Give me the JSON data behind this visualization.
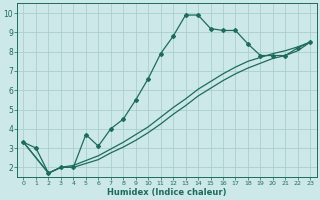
{
  "title": "",
  "xlabel": "Humidex (Indice chaleur)",
  "bg_color": "#cce8e8",
  "grid_color": "#aacece",
  "line_color": "#1e6b5e",
  "xlim": [
    -0.5,
    23.5
  ],
  "ylim": [
    1.5,
    10.5
  ],
  "xticks": [
    0,
    1,
    2,
    3,
    4,
    5,
    6,
    7,
    8,
    9,
    10,
    11,
    12,
    13,
    14,
    15,
    16,
    17,
    18,
    19,
    20,
    21,
    22,
    23
  ],
  "yticks": [
    2,
    3,
    4,
    5,
    6,
    7,
    8,
    9,
    10
  ],
  "series1_x": [
    0,
    1,
    2,
    3,
    4,
    5,
    6,
    7,
    8,
    9,
    10,
    11,
    12,
    13,
    14,
    15,
    16,
    17,
    18,
    19,
    20,
    21,
    22,
    23
  ],
  "series1_y": [
    3.3,
    3.0,
    1.7,
    2.0,
    2.0,
    3.7,
    3.1,
    4.0,
    4.5,
    5.5,
    6.6,
    7.9,
    8.8,
    9.9,
    9.9,
    9.2,
    9.1,
    9.1,
    8.4,
    7.8,
    7.8,
    7.8,
    8.2,
    8.5
  ],
  "series2_x": [
    0,
    2,
    3,
    4,
    5,
    6,
    7,
    8,
    9,
    10,
    11,
    12,
    13,
    14,
    15,
    16,
    17,
    18,
    19,
    20,
    21,
    22,
    23
  ],
  "series2_y": [
    3.3,
    1.7,
    2.0,
    2.1,
    2.35,
    2.6,
    2.95,
    3.3,
    3.7,
    4.1,
    4.6,
    5.1,
    5.55,
    6.05,
    6.45,
    6.85,
    7.2,
    7.5,
    7.7,
    7.9,
    8.05,
    8.25,
    8.5
  ],
  "series3_x": [
    0,
    2,
    3,
    4,
    5,
    6,
    7,
    8,
    9,
    10,
    11,
    12,
    13,
    14,
    15,
    16,
    17,
    18,
    19,
    20,
    21,
    22,
    23
  ],
  "series3_y": [
    3.3,
    1.7,
    2.0,
    2.0,
    2.2,
    2.4,
    2.75,
    3.05,
    3.4,
    3.8,
    4.25,
    4.75,
    5.2,
    5.7,
    6.1,
    6.5,
    6.85,
    7.15,
    7.4,
    7.65,
    7.8,
    8.05,
    8.5
  ]
}
